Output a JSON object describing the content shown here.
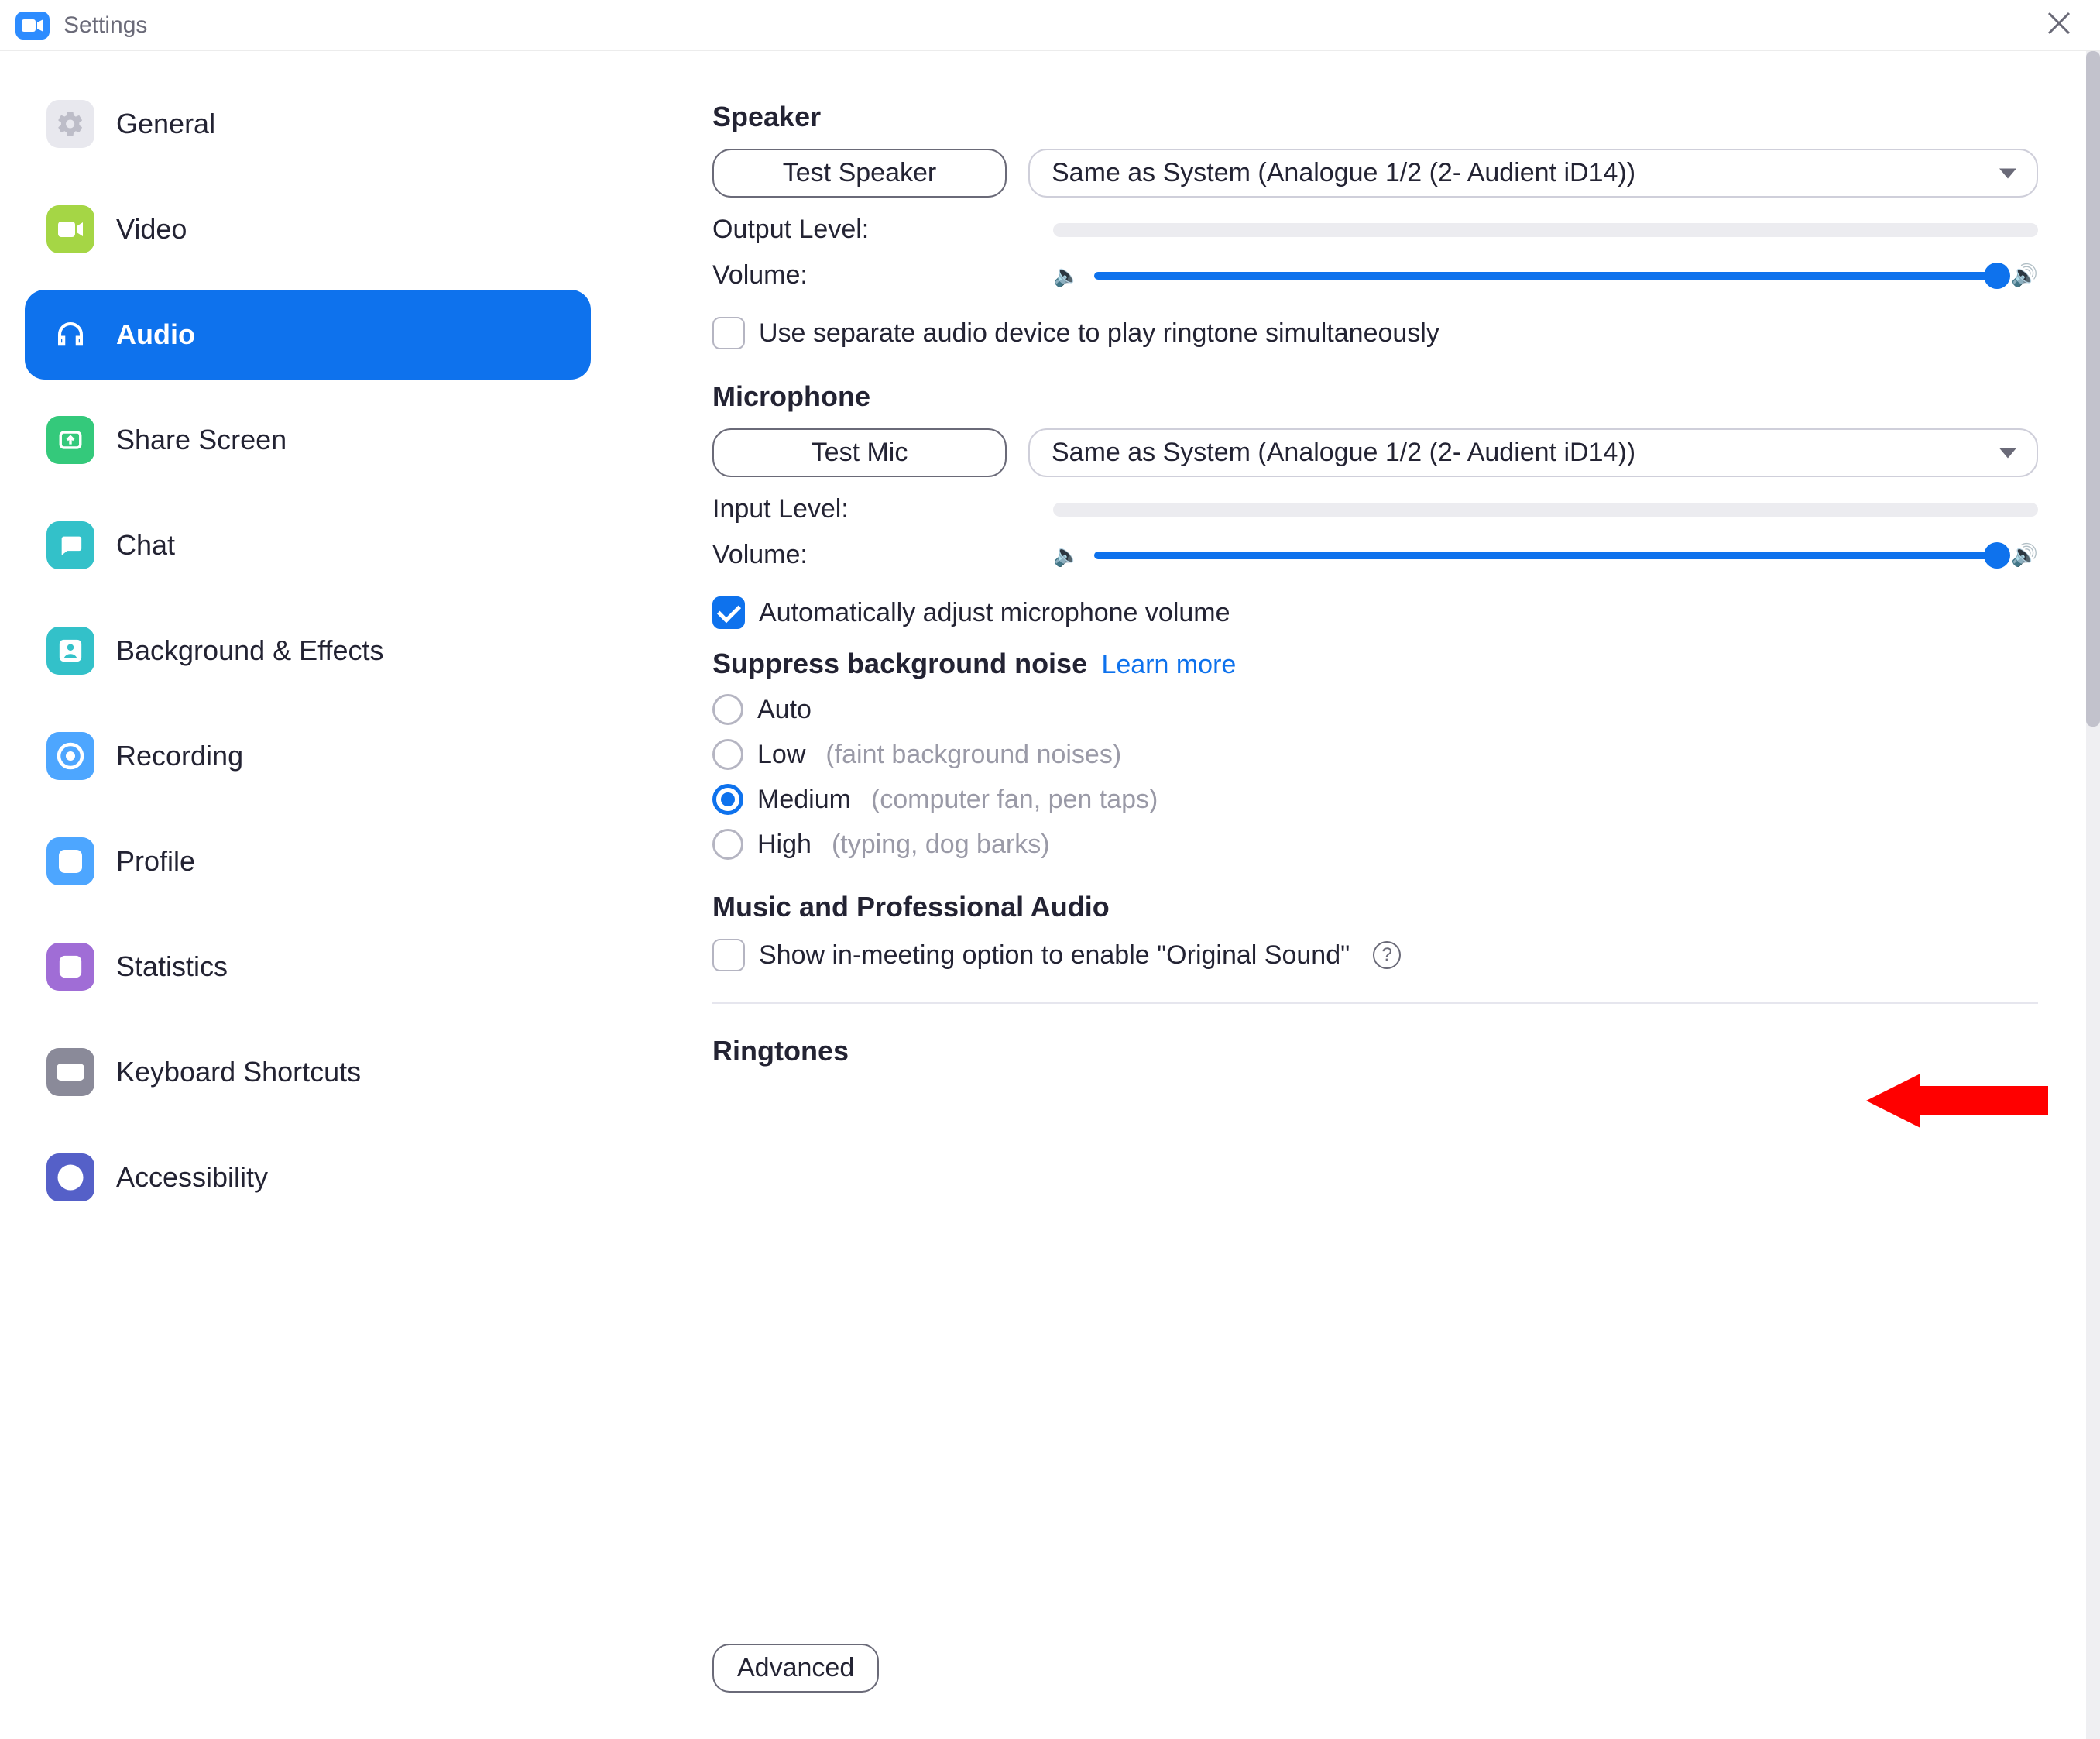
{
  "window": {
    "title": "Settings"
  },
  "sidebar": {
    "items": [
      {
        "label": "General",
        "icon_bg": "#e8e8ee",
        "icon_fg": "#bdbdc8",
        "svg": "gear"
      },
      {
        "label": "Video",
        "icon_bg": "#a5d645",
        "icon_fg": "#ffffff",
        "svg": "camera"
      },
      {
        "label": "Audio",
        "icon_bg": "transparent",
        "icon_fg": "#ffffff",
        "svg": "headphone",
        "active": true
      },
      {
        "label": "Share Screen",
        "icon_bg": "#34c97b",
        "icon_fg": "#ffffff",
        "svg": "share"
      },
      {
        "label": "Chat",
        "icon_bg": "#33c1c9",
        "icon_fg": "#ffffff",
        "svg": "chat"
      },
      {
        "label": "Background & Effects",
        "icon_bg": "#33c1c9",
        "icon_fg": "#ffffff",
        "svg": "person"
      },
      {
        "label": "Recording",
        "icon_bg": "#4da6ff",
        "icon_fg": "#ffffff",
        "svg": "record"
      },
      {
        "label": "Profile",
        "icon_bg": "#4da6ff",
        "icon_fg": "#ffffff",
        "svg": "profile"
      },
      {
        "label": "Statistics",
        "icon_bg": "#a06dd6",
        "icon_fg": "#ffffff",
        "svg": "stats"
      },
      {
        "label": "Keyboard Shortcuts",
        "icon_bg": "#8a8a99",
        "icon_fg": "#ffffff",
        "svg": "keyboard"
      },
      {
        "label": "Accessibility",
        "icon_bg": "#5560c8",
        "icon_fg": "#ffffff",
        "svg": "accessibility"
      }
    ]
  },
  "speaker": {
    "heading": "Speaker",
    "test_label": "Test Speaker",
    "device": "Same as System (Analogue 1/2 (2- Audient iD14))",
    "output_label": "Output Level:",
    "volume_label": "Volume:",
    "volume_percent": 98
  },
  "ringtone_check": {
    "label": "Use separate audio device to play ringtone simultaneously",
    "checked": false
  },
  "microphone": {
    "heading": "Microphone",
    "test_label": "Test Mic",
    "device": "Same as System (Analogue 1/2 (2- Audient iD14))",
    "input_label": "Input Level:",
    "volume_label": "Volume:",
    "volume_percent": 98
  },
  "auto_adjust": {
    "label": "Automatically adjust microphone volume",
    "checked": true
  },
  "suppress": {
    "heading": "Suppress background noise",
    "link": "Learn more",
    "options": [
      {
        "label": "Auto",
        "hint": "",
        "selected": false
      },
      {
        "label": "Low",
        "hint": "(faint background noises)",
        "selected": false
      },
      {
        "label": "Medium",
        "hint": "(computer fan, pen taps)",
        "selected": true
      },
      {
        "label": "High",
        "hint": "(typing, dog barks)",
        "selected": false
      }
    ]
  },
  "music": {
    "heading": "Music and Professional Audio",
    "original_sound_label": "Show in-meeting option to enable \"Original Sound\"",
    "original_sound_checked": false
  },
  "ringtones": {
    "heading": "Ringtones"
  },
  "advanced": {
    "label": "Advanced"
  },
  "callout_arrow": {
    "color": "#ff0000",
    "points_to": "suppress-option-low"
  },
  "colors": {
    "accent": "#0e72ed",
    "text": "#232333",
    "muted": "#9a9aa7",
    "border": "#cfcfda",
    "track": "#ececf0"
  }
}
